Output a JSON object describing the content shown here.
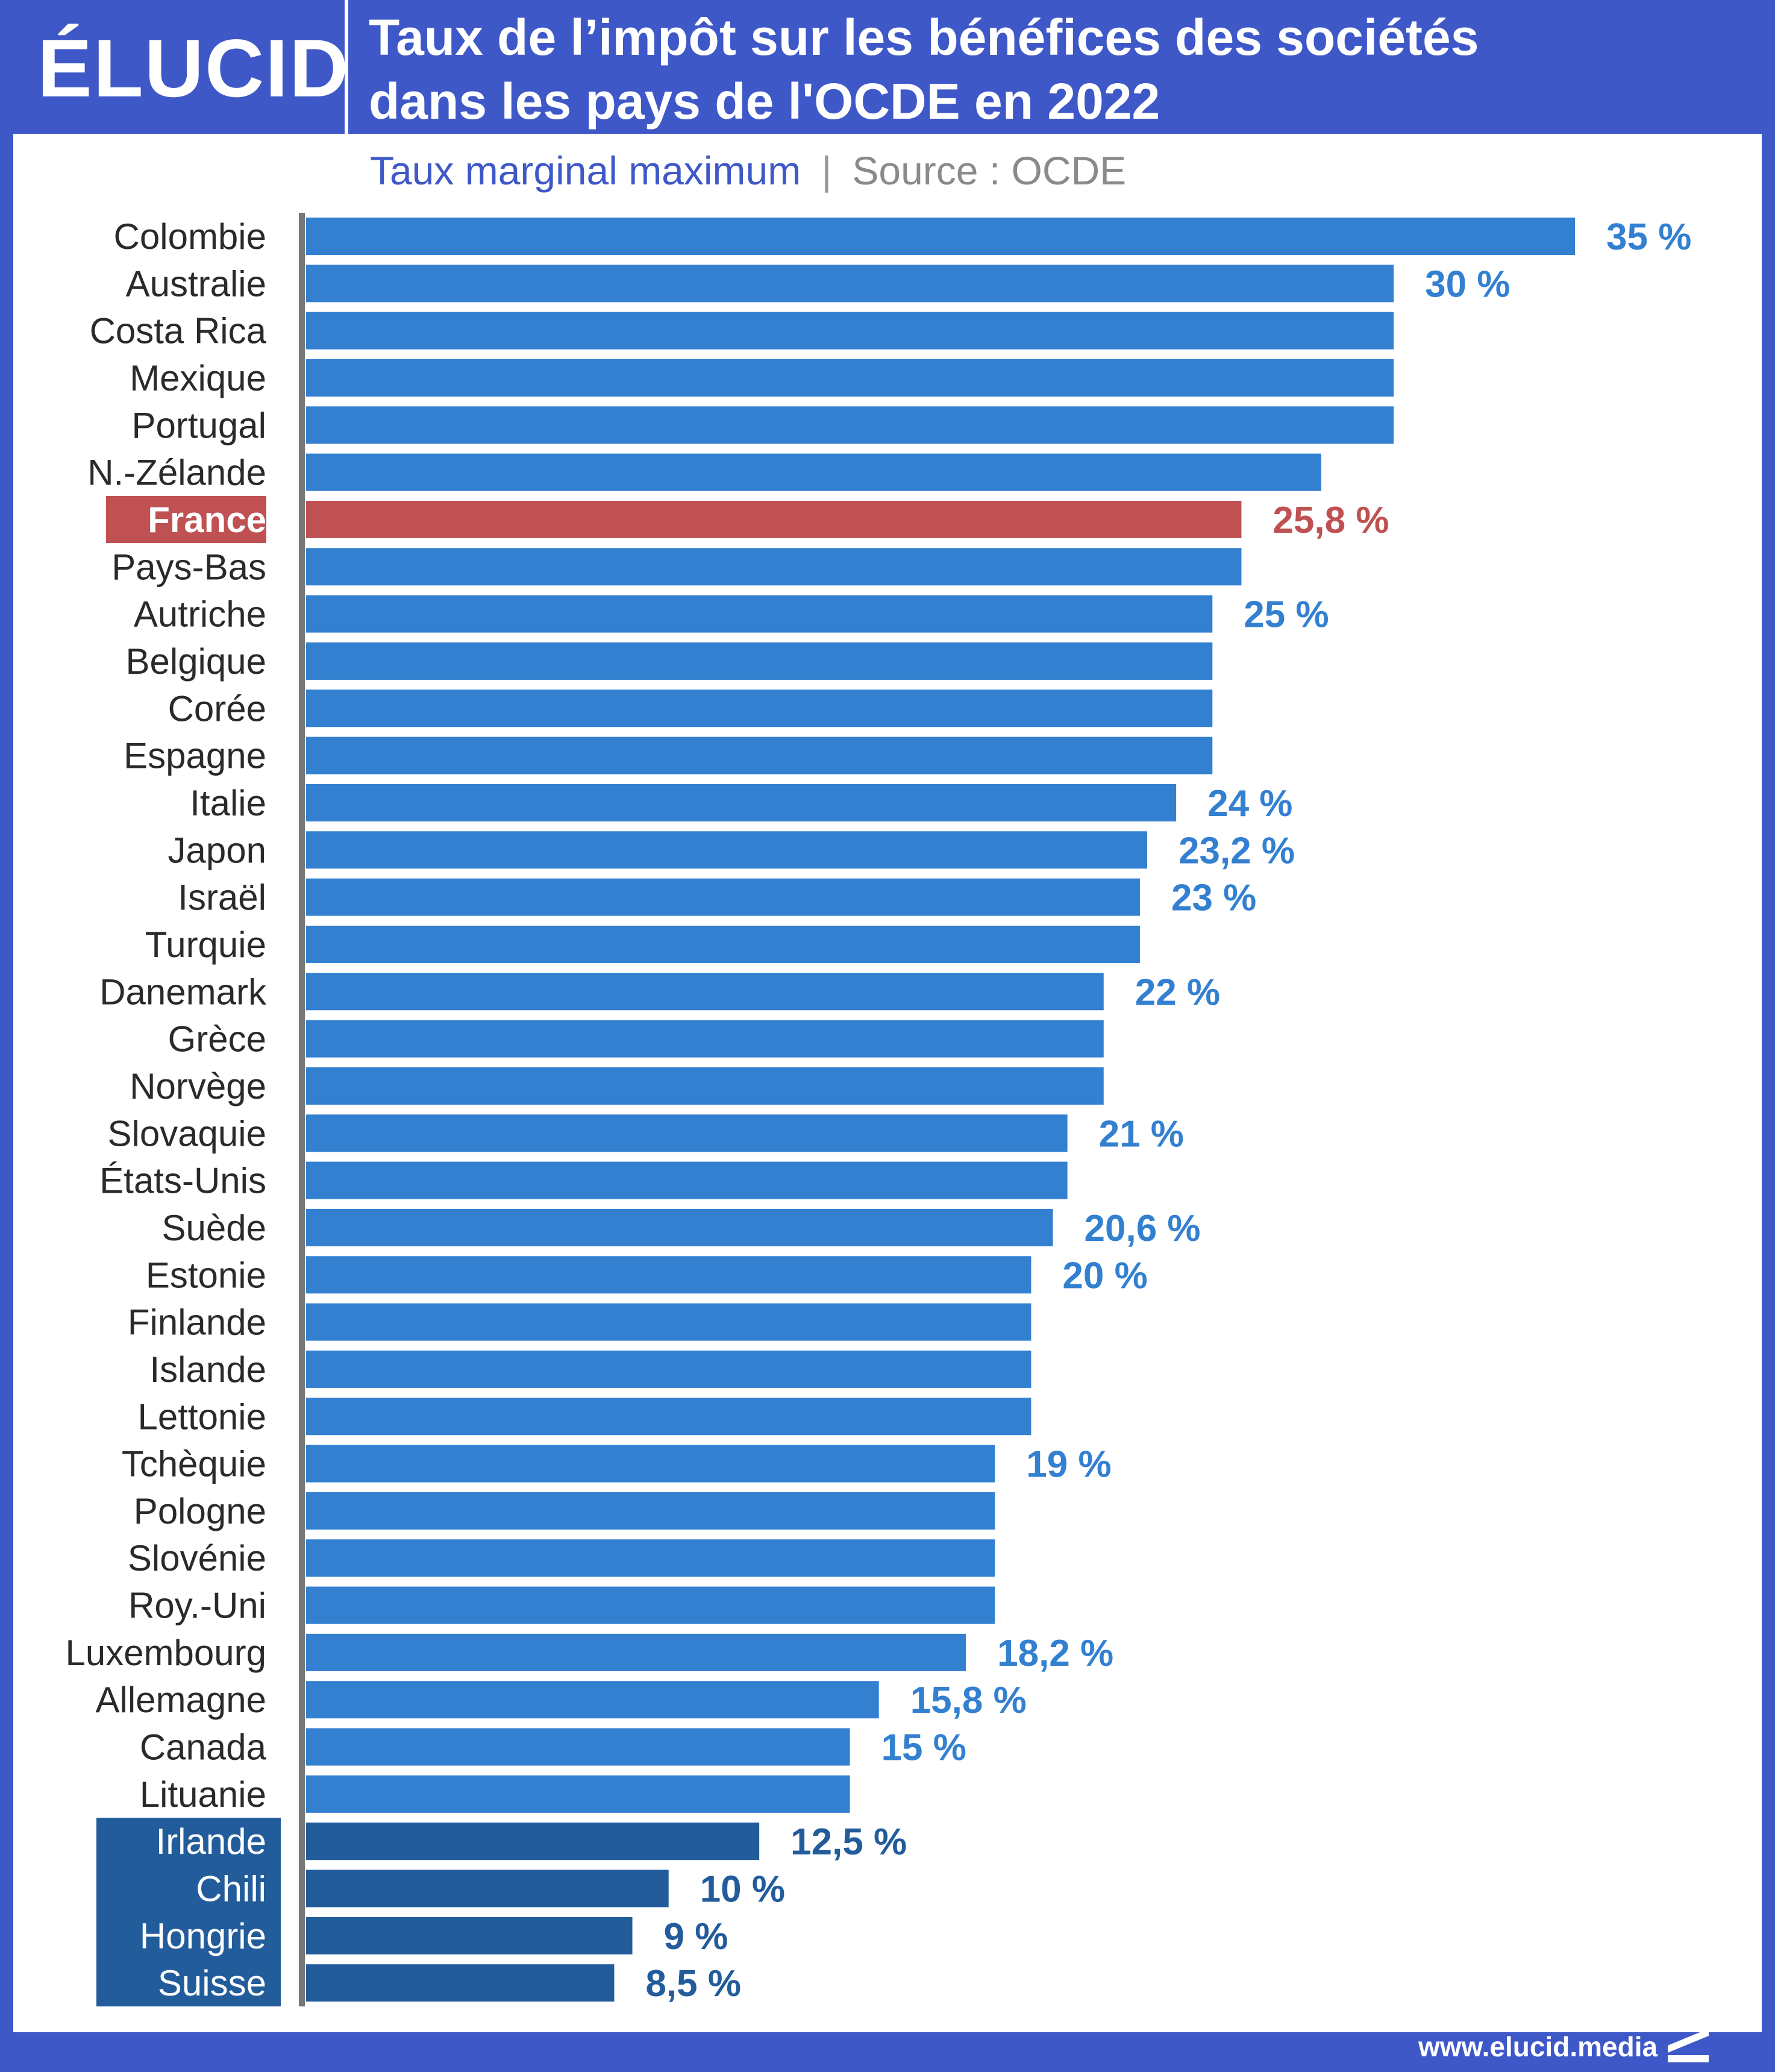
{
  "brand": {
    "logo_text": "ÉLUCID",
    "website": "www.elucid.media"
  },
  "header": {
    "title_line1": "Taux de l’impôt sur les bénéfices des sociétés",
    "title_line2": "dans les pays de l'OCDE en 2022",
    "subtitle": "Taux marginal maximum",
    "separator": "|",
    "source": "Source : OCDE"
  },
  "colors": {
    "header_blue": "#3f58c8",
    "bar_blue": "#3380d1",
    "bar_highlight_red": "#c05152",
    "bar_dark_blue": "#225c9b",
    "label_blue": "#3380d1",
    "label_red": "#c05152",
    "label_dark_blue": "#225c9b",
    "axis_gray": "#777777"
  },
  "chart_data": {
    "type": "bar",
    "orientation": "horizontal",
    "unit": "%",
    "xlim": [
      0,
      35
    ],
    "highlight": "France",
    "low_group": [
      "Irlande",
      "Chili",
      "Hongrie",
      "Suisse"
    ],
    "categories": [
      "Colombie",
      "Australie",
      "Costa Rica",
      "Mexique",
      "Portugal",
      "N.-Zélande",
      "France",
      "Pays-Bas",
      "Autriche",
      "Belgique",
      "Corée",
      "Espagne",
      "Italie",
      "Japon",
      "Israël",
      "Turquie",
      "Danemark",
      "Grèce",
      "Norvège",
      "Slovaquie",
      "États-Unis",
      "Suède",
      "Estonie",
      "Finlande",
      "Islande",
      "Lettonie",
      "Tchèquie",
      "Pologne",
      "Slovénie",
      "Roy.-Uni",
      "Luxembourg",
      "Allemagne",
      "Canada",
      "Lituanie",
      "Irlande",
      "Chili",
      "Hongrie",
      "Suisse"
    ],
    "values": [
      35,
      30,
      30,
      30,
      30,
      28,
      25.8,
      25.8,
      25,
      25,
      25,
      25,
      24,
      23.2,
      23,
      23,
      22,
      22,
      22,
      21,
      21,
      20.6,
      20,
      20,
      20,
      20,
      19,
      19,
      19,
      19,
      18.2,
      15.8,
      15,
      15,
      12.5,
      10,
      9,
      8.5
    ],
    "data_labels": [
      "35 %",
      "30 %",
      "",
      "",
      "",
      "",
      "25,8 %",
      "",
      "25 %",
      "",
      "",
      "",
      "24 %",
      "23,2 %",
      "23 %",
      "",
      "22 %",
      "",
      "",
      "21 %",
      "",
      "20,6 %",
      "20 %",
      "",
      "",
      "",
      "19 %",
      "",
      "",
      "",
      "18,2 %",
      "15,8 %",
      "15 %",
      "",
      "12,5 %",
      "10 %",
      "9 %",
      "8,5 %"
    ]
  }
}
